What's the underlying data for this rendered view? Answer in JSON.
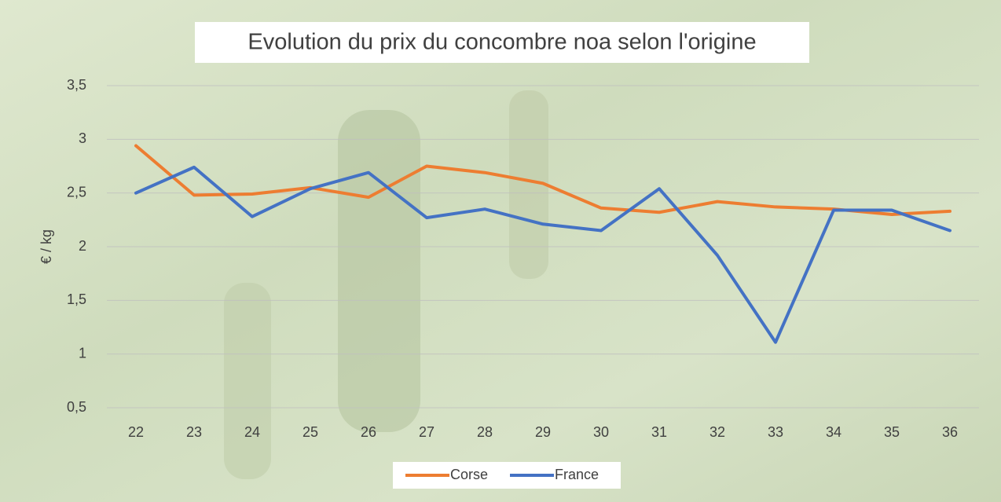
{
  "chart_data": {
    "type": "line",
    "title": "Evolution du prix du concombre noa selon l'origine",
    "y_label": "€ / kg",
    "categories": [
      "22",
      "23",
      "24",
      "25",
      "26",
      "27",
      "28",
      "29",
      "30",
      "31",
      "32",
      "33",
      "34",
      "35",
      "36"
    ],
    "series": [
      {
        "name": "Corse",
        "color": "#ed7d31",
        "values": [
          2.94,
          2.48,
          2.49,
          2.55,
          2.46,
          2.75,
          2.69,
          2.59,
          2.36,
          2.32,
          2.42,
          2.37,
          2.35,
          2.3,
          2.33
        ]
      },
      {
        "name": "France",
        "color": "#4472c4",
        "values": [
          2.5,
          2.74,
          2.28,
          2.54,
          2.69,
          2.27,
          2.35,
          2.21,
          2.15,
          2.54,
          1.92,
          1.11,
          2.34,
          2.34,
          2.15
        ]
      }
    ],
    "ylim": [
      0.5,
      3.5
    ],
    "yticks": [
      {
        "value": 0.5,
        "label": "0,5"
      },
      1,
      {
        "value": 1.5,
        "label": "1,5"
      },
      2,
      {
        "value": 2.5,
        "label": "2,5"
      },
      3,
      {
        "value": 3.5,
        "label": "3,5"
      }
    ],
    "grid": true,
    "legend": "bottom"
  }
}
